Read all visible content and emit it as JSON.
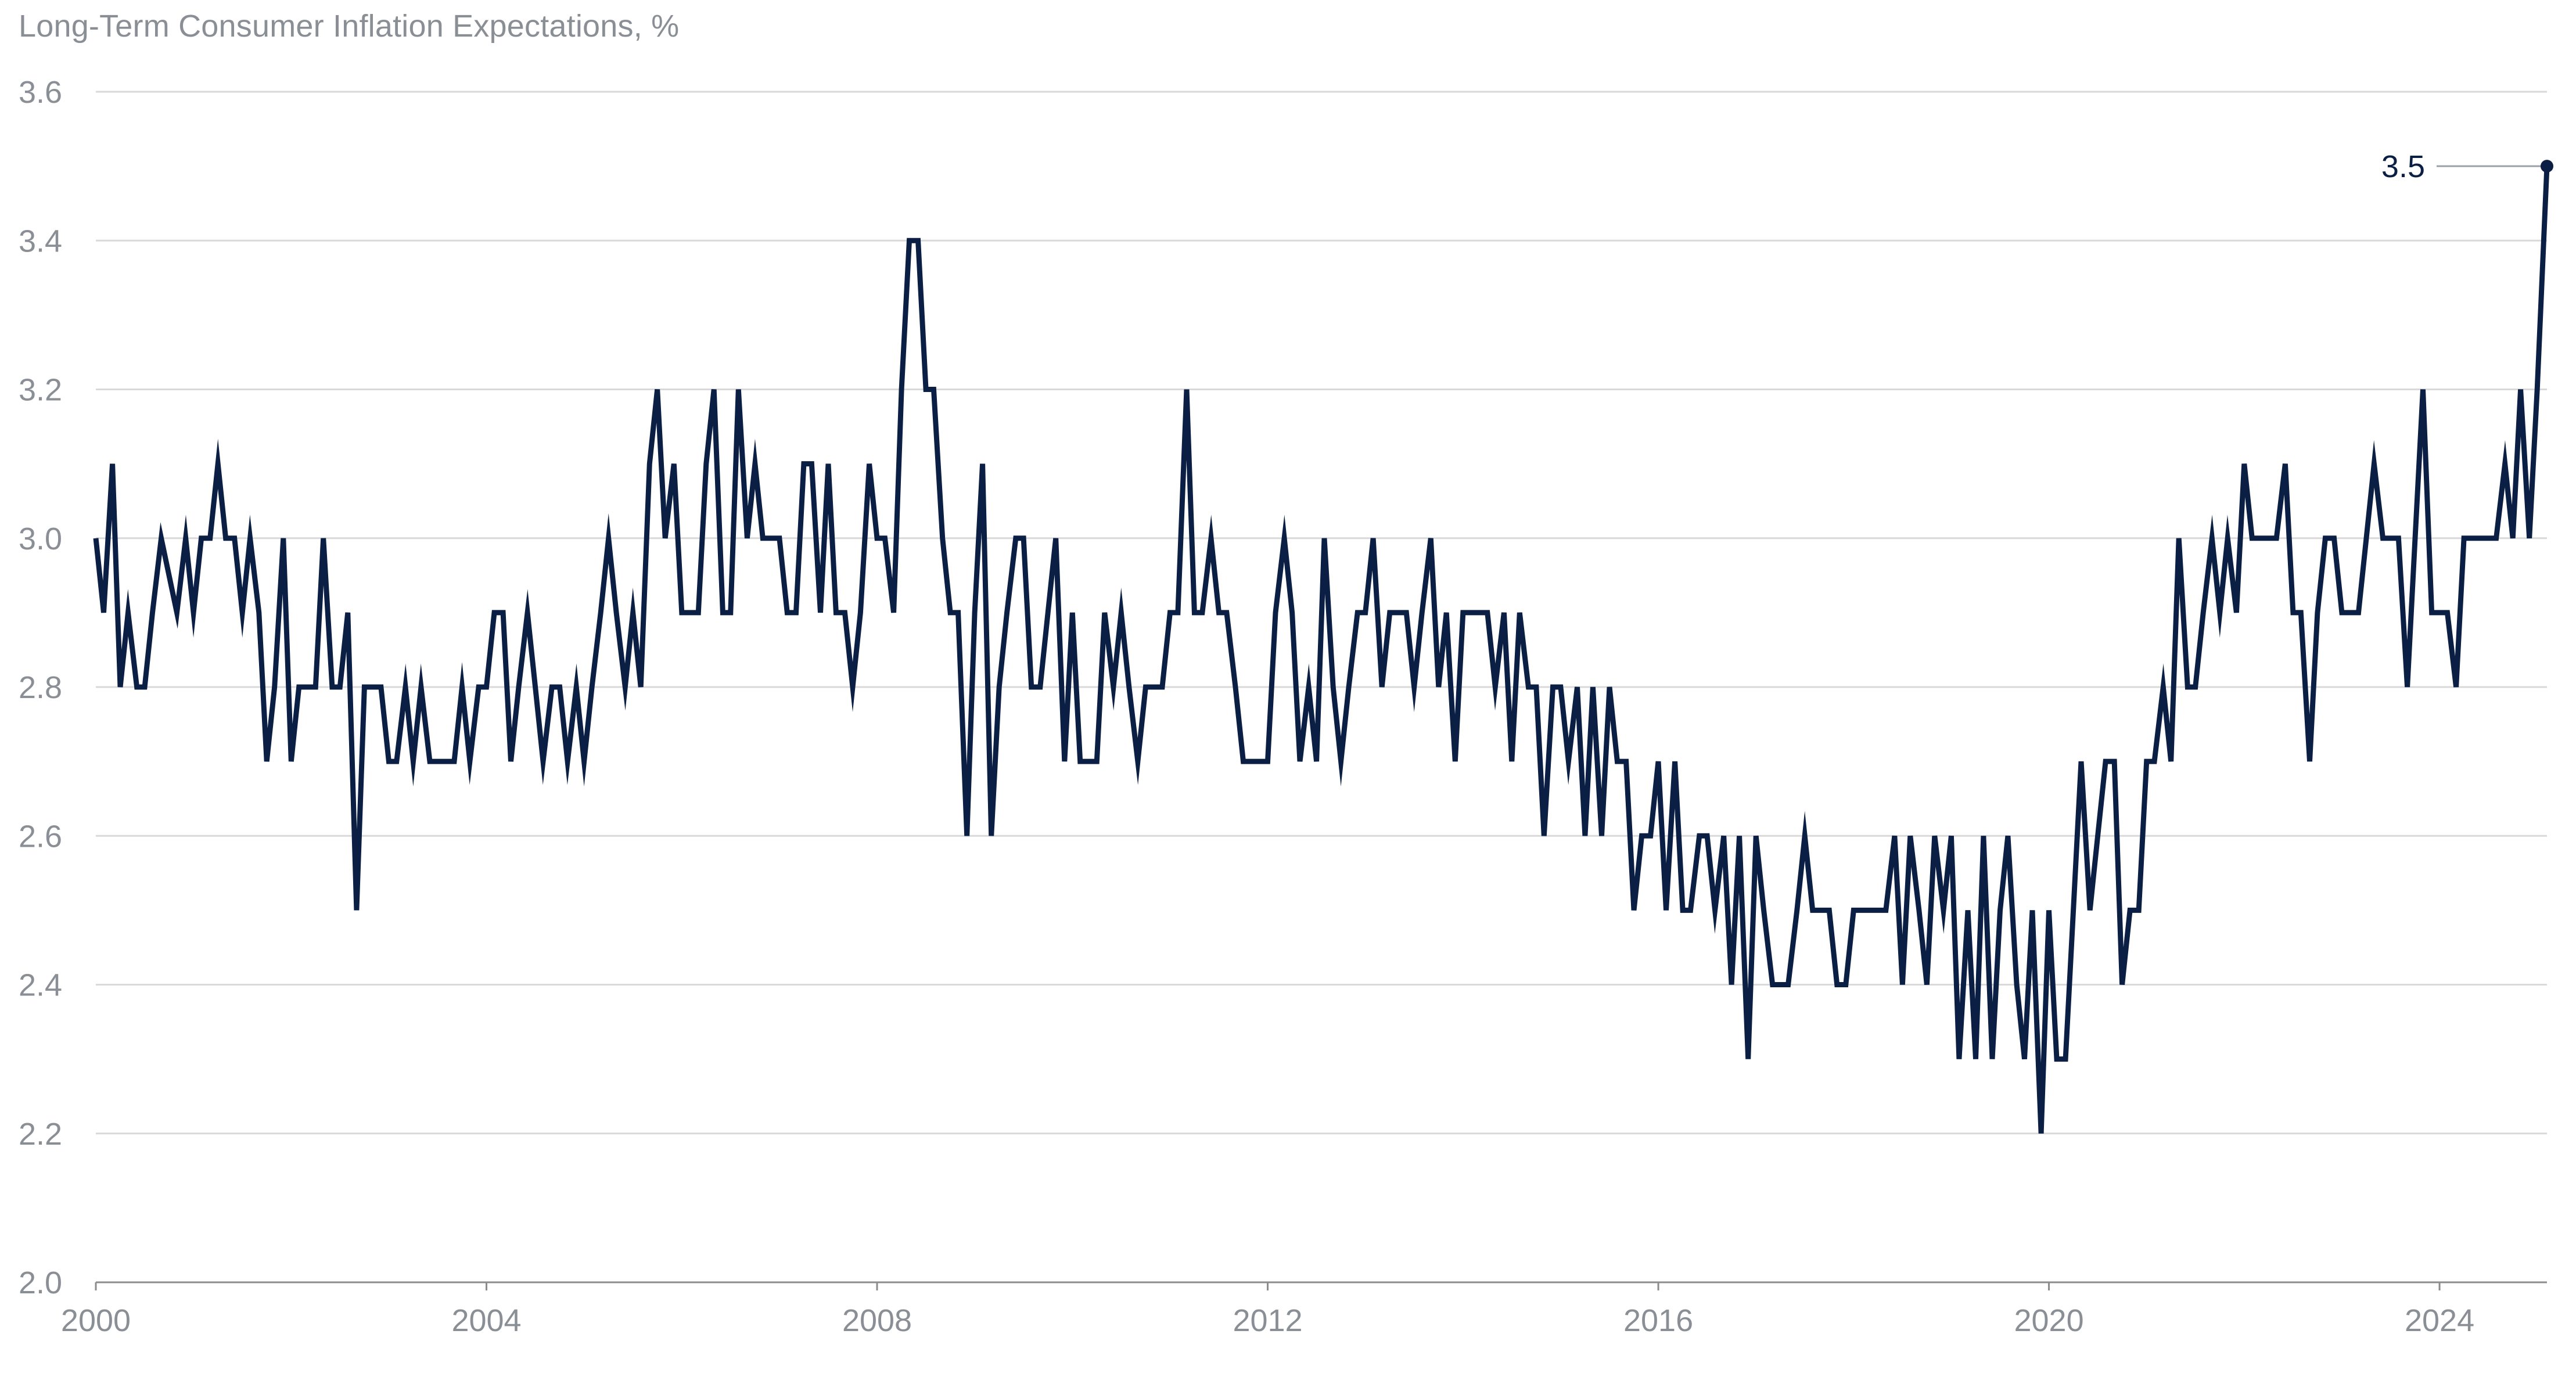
{
  "chart_data": {
    "type": "line",
    "title": "Long-Term Consumer Inflation Expectations, %",
    "xlabel": "",
    "ylabel": "",
    "ylim": [
      2.0,
      3.6
    ],
    "yticks": [
      "2.0",
      "2.2",
      "2.4",
      "2.6",
      "2.8",
      "3.0",
      "3.2",
      "3.4",
      "3.6"
    ],
    "xlim": [
      2000.0,
      2025.1
    ],
    "xticks": [
      "2000",
      "2004",
      "2008",
      "2012",
      "2016",
      "2020",
      "2024"
    ],
    "grid": true,
    "legend": "none",
    "colors": {
      "line": "#0b1f44",
      "grid": "#d9d9d9",
      "axis": "#8c8c8c",
      "tick_text": "#8a8f96",
      "annotation": "#0b1f44"
    },
    "annotation": {
      "label": "3.5",
      "x": 2025.1,
      "y": 3.5
    },
    "series": [
      {
        "x": [
          2000.0,
          2000.08,
          2000.17,
          2000.25,
          2000.33,
          2000.42,
          2000.5,
          2000.58,
          2000.67,
          2000.83,
          2000.92,
          2001.0,
          2001.08,
          2001.17,
          2001.25,
          2001.33,
          2001.42,
          2001.5,
          2001.58,
          2001.67,
          2001.75,
          2001.83,
          2001.92,
          2002.0,
          2002.08,
          2002.17,
          2002.25,
          2002.33,
          2002.42,
          2002.5,
          2002.58,
          2002.67,
          2002.75,
          2002.83,
          2002.92,
          2003.0,
          2003.08,
          2003.17,
          2003.25,
          2003.33,
          2003.42,
          2003.5,
          2003.58,
          2003.67,
          2003.75,
          2003.83,
          2003.92,
          2004.0,
          2004.08,
          2004.17,
          2004.25,
          2004.33,
          2004.42,
          2004.5,
          2004.58,
          2004.67,
          2004.75,
          2004.83,
          2004.92,
          2005.0,
          2005.08,
          2005.17,
          2005.25,
          2005.33,
          2005.42,
          2005.5,
          2005.58,
          2005.67,
          2005.75,
          2005.83,
          2005.92,
          2006.0,
          2006.08,
          2006.17,
          2006.25,
          2006.33,
          2006.42,
          2006.5,
          2006.58,
          2006.67,
          2006.75,
          2006.83,
          2006.92,
          2007.0,
          2007.08,
          2007.17,
          2007.25,
          2007.33,
          2007.42,
          2007.5,
          2007.58,
          2007.67,
          2007.75,
          2007.83,
          2007.92,
          2008.0,
          2008.08,
          2008.17,
          2008.25,
          2008.33,
          2008.42,
          2008.5,
          2008.58,
          2008.67,
          2008.75,
          2008.83,
          2008.92,
          2009.0,
          2009.08,
          2009.17,
          2009.25,
          2009.33,
          2009.42,
          2009.5,
          2009.58,
          2009.67,
          2009.75,
          2009.83,
          2009.92,
          2010.0,
          2010.08,
          2010.17,
          2010.25,
          2010.33,
          2010.42,
          2010.5,
          2010.58,
          2010.67,
          2010.75,
          2010.83,
          2010.92,
          2011.0,
          2011.08,
          2011.17,
          2011.25,
          2011.33,
          2011.42,
          2011.5,
          2011.58,
          2011.67,
          2011.75,
          2011.83,
          2011.92,
          2012.0,
          2012.08,
          2012.17,
          2012.25,
          2012.33,
          2012.42,
          2012.5,
          2012.58,
          2012.67,
          2012.75,
          2012.83,
          2012.92,
          2013.0,
          2013.08,
          2013.17,
          2013.25,
          2013.33,
          2013.42,
          2013.5,
          2013.58,
          2013.67,
          2013.75,
          2013.83,
          2013.92,
          2014.0,
          2014.08,
          2014.17,
          2014.25,
          2014.33,
          2014.42,
          2014.5,
          2014.58,
          2014.67,
          2014.75,
          2014.83,
          2014.92,
          2015.0,
          2015.08,
          2015.17,
          2015.25,
          2015.33,
          2015.42,
          2015.5,
          2015.58,
          2015.67,
          2015.75,
          2015.83,
          2015.92,
          2016.0,
          2016.08,
          2016.17,
          2016.25,
          2016.33,
          2016.42,
          2016.5,
          2016.58,
          2016.67,
          2016.75,
          2016.83,
          2016.92,
          2017.0,
          2017.08,
          2017.17,
          2017.25,
          2017.33,
          2017.42,
          2017.5,
          2017.58,
          2017.67,
          2017.75,
          2017.83,
          2017.92,
          2018.0,
          2018.08,
          2018.17,
          2018.25,
          2018.33,
          2018.42,
          2018.5,
          2018.58,
          2018.67,
          2018.75,
          2018.83,
          2018.92,
          2019.0,
          2019.08,
          2019.17,
          2019.25,
          2019.33,
          2019.42,
          2019.5,
          2019.58,
          2019.67,
          2019.75,
          2019.83,
          2019.92,
          2020.0,
          2020.08,
          2020.17,
          2020.25,
          2020.33,
          2020.42,
          2020.5,
          2020.58,
          2020.67,
          2020.75,
          2020.83,
          2020.92,
          2021.0,
          2021.08,
          2021.17,
          2021.25,
          2021.33,
          2021.42,
          2021.5,
          2021.58,
          2021.67,
          2021.75,
          2021.83,
          2021.92,
          2022.0,
          2022.08,
          2022.17,
          2022.25,
          2022.33,
          2022.42,
          2022.5,
          2022.58,
          2022.67,
          2022.75,
          2022.83,
          2022.92,
          2023.0,
          2023.08,
          2023.17,
          2023.25,
          2023.33,
          2023.42,
          2023.5,
          2023.58,
          2023.67,
          2023.75,
          2023.83,
          2023.92,
          2024.0,
          2024.08,
          2024.17,
          2024.25,
          2024.33,
          2024.42,
          2024.5,
          2024.58,
          2024.67,
          2024.75,
          2024.83,
          2024.92,
          2025.0,
          2025.1
        ],
        "y": [
          3.0,
          2.9,
          3.1,
          2.8,
          2.9,
          2.8,
          2.8,
          2.9,
          3.0,
          2.9,
          3.0,
          2.9,
          3.0,
          3.0,
          3.1,
          3.0,
          3.0,
          2.9,
          3.0,
          2.9,
          2.7,
          2.8,
          3.0,
          2.7,
          2.8,
          2.8,
          2.8,
          3.0,
          2.8,
          2.8,
          2.9,
          2.5,
          2.8,
          2.8,
          2.8,
          2.7,
          2.7,
          2.8,
          2.7,
          2.8,
          2.7,
          2.7,
          2.7,
          2.7,
          2.8,
          2.7,
          2.8,
          2.8,
          2.9,
          2.9,
          2.7,
          2.8,
          2.9,
          2.8,
          2.7,
          2.8,
          2.8,
          2.7,
          2.8,
          2.7,
          2.8,
          2.9,
          3.0,
          2.9,
          2.8,
          2.9,
          2.8,
          3.1,
          3.2,
          3.0,
          3.1,
          2.9,
          2.9,
          2.9,
          3.1,
          3.2,
          2.9,
          2.9,
          3.2,
          3.0,
          3.1,
          3.0,
          3.0,
          3.0,
          2.9,
          2.9,
          3.1,
          3.1,
          2.9,
          3.1,
          2.9,
          2.9,
          2.8,
          2.9,
          3.1,
          3.0,
          3.0,
          2.9,
          3.2,
          3.4,
          3.4,
          3.2,
          3.2,
          3.0,
          2.9,
          2.9,
          2.6,
          2.9,
          3.1,
          2.6,
          2.8,
          2.9,
          3.0,
          3.0,
          2.8,
          2.8,
          2.9,
          3.0,
          2.7,
          2.9,
          2.7,
          2.7,
          2.7,
          2.9,
          2.8,
          2.9,
          2.8,
          2.7,
          2.8,
          2.8,
          2.8,
          2.9,
          2.9,
          3.2,
          2.9,
          2.9,
          3.0,
          2.9,
          2.9,
          2.8,
          2.7,
          2.7,
          2.7,
          2.7,
          2.9,
          3.0,
          2.9,
          2.7,
          2.8,
          2.7,
          3.0,
          2.8,
          2.7,
          2.8,
          2.9,
          2.9,
          3.0,
          2.8,
          2.9,
          2.9,
          2.9,
          2.8,
          2.9,
          3.0,
          2.8,
          2.9,
          2.7,
          2.9,
          2.9,
          2.9,
          2.9,
          2.8,
          2.9,
          2.7,
          2.9,
          2.8,
          2.8,
          2.6,
          2.8,
          2.8,
          2.7,
          2.8,
          2.6,
          2.8,
          2.6,
          2.8,
          2.7,
          2.7,
          2.5,
          2.6,
          2.6,
          2.7,
          2.5,
          2.7,
          2.5,
          2.5,
          2.6,
          2.6,
          2.5,
          2.6,
          2.4,
          2.6,
          2.3,
          2.6,
          2.5,
          2.4,
          2.4,
          2.4,
          2.5,
          2.6,
          2.5,
          2.5,
          2.5,
          2.4,
          2.4,
          2.5,
          2.5,
          2.5,
          2.5,
          2.5,
          2.6,
          2.4,
          2.6,
          2.5,
          2.4,
          2.6,
          2.5,
          2.6,
          2.3,
          2.5,
          2.3,
          2.6,
          2.3,
          2.5,
          2.6,
          2.4,
          2.3,
          2.5,
          2.2,
          2.5,
          2.3,
          2.3,
          2.5,
          2.7,
          2.5,
          2.6,
          2.7,
          2.7,
          2.4,
          2.5,
          2.5,
          2.7,
          2.7,
          2.8,
          2.7,
          3.0,
          2.8,
          2.8,
          2.9,
          3.0,
          2.9,
          3.0,
          2.9,
          3.1,
          3.0,
          3.0,
          3.0,
          3.0,
          3.1,
          2.9,
          2.9,
          2.7,
          2.9,
          3.0,
          3.0,
          2.9,
          2.9,
          2.9,
          3.0,
          3.1,
          3.0,
          3.0,
          3.0,
          2.8,
          3.0,
          3.2,
          2.9,
          2.9,
          2.9,
          2.8,
          3.0,
          3.0,
          3.0,
          3.0,
          3.0,
          3.1,
          3.0,
          3.2,
          3.0,
          3.2,
          3.5
        ]
      }
    ]
  }
}
